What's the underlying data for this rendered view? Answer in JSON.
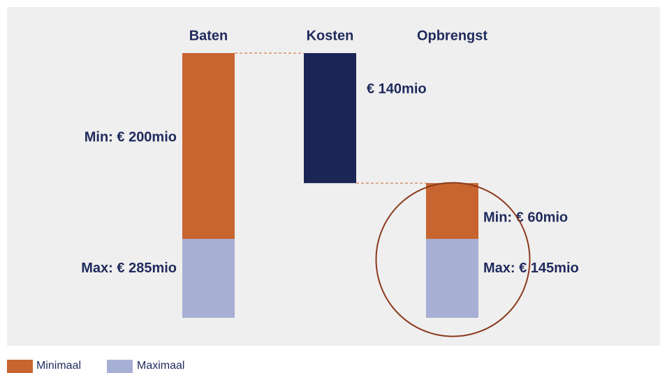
{
  "chart_data": {
    "type": "waterfall",
    "categories": [
      "Baten",
      "Kosten",
      "Opbrengst"
    ],
    "series": [
      {
        "name": "Minimaal",
        "color": "#c8642f",
        "values": [
          200,
          null,
          60
        ],
        "value_labels": [
          "Min: € 200mio",
          null,
          "Min: € 60mio"
        ]
      },
      {
        "name": "Maximaal",
        "color": "#a7afd5",
        "values": [
          285,
          null,
          145
        ],
        "value_labels": [
          "Max: € 285mio",
          null,
          "Max: € 145mio"
        ]
      }
    ],
    "costs": {
      "color": "#1b2556",
      "values": [
        null,
        140,
        null
      ],
      "value_labels": [
        null,
        "€ 140mio",
        null
      ]
    }
  }
}
